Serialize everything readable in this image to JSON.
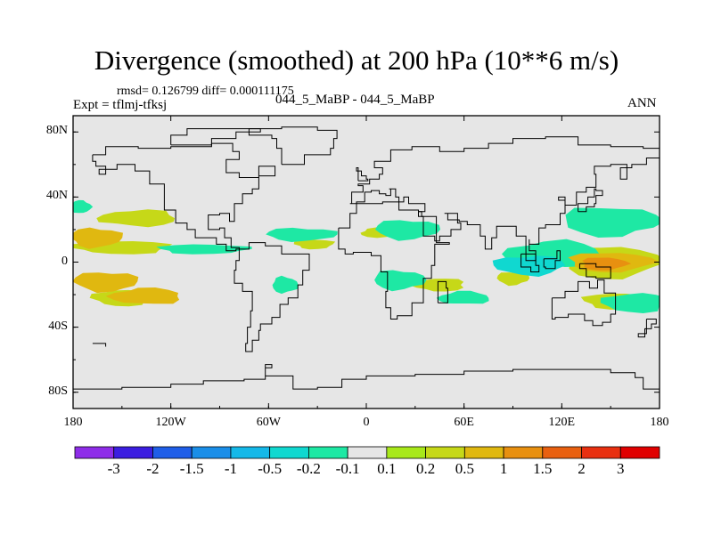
{
  "title": "Divergence (smoothed) at 200 hPa (10**6 m/s)",
  "stats": "rmsd= 0.126799 diff= 0.000111175",
  "experiment": "Expt = tflmj-tfksj",
  "cases": "044_5_MaBP - 044_5_MaBP",
  "season": "ANN",
  "chart_data": {
    "type": "heatmap",
    "projection": "cylindrical-equidistant",
    "lon_range": [
      -180,
      180
    ],
    "lat_range": [
      -90,
      90
    ],
    "x_ticks": [
      {
        "value": -180,
        "label": "180"
      },
      {
        "value": -120,
        "label": "120W"
      },
      {
        "value": -60,
        "label": "60W"
      },
      {
        "value": 0,
        "label": "0"
      },
      {
        "value": 60,
        "label": "60E"
      },
      {
        "value": 120,
        "label": "120E"
      },
      {
        "value": 180,
        "label": "180"
      }
    ],
    "y_ticks": [
      {
        "value": 80,
        "label": "80N"
      },
      {
        "value": 40,
        "label": "40N"
      },
      {
        "value": 0,
        "label": "0"
      },
      {
        "value": -40,
        "label": "40S"
      },
      {
        "value": -80,
        "label": "80S"
      }
    ],
    "levels": [
      "-3",
      "-2",
      "-1.5",
      "-1",
      "-0.5",
      "-0.2",
      "-0.1",
      "0.1",
      "0.2",
      "0.5",
      "1",
      "1.5",
      "2",
      "3"
    ],
    "colors": [
      "#8e2de8",
      "#3b1ee0",
      "#1f5ee8",
      "#1a8ee8",
      "#14b8e8",
      "#10d8d0",
      "#1ee8a4",
      "#e6e6e6",
      "#a8e81a",
      "#c6d818",
      "#e0b810",
      "#e89010",
      "#e86010",
      "#e83010",
      "#e00000"
    ],
    "features": [
      {
        "name": "positive",
        "lon": -166,
        "lat": 15,
        "rx": 16,
        "ry": 6,
        "value": 0.5
      },
      {
        "name": "positive",
        "lon": -150,
        "lat": 9,
        "rx": 30,
        "ry": 4,
        "value": 0.2
      },
      {
        "name": "positive",
        "lon": -160,
        "lat": -12,
        "rx": 20,
        "ry": 6,
        "value": 0.5
      },
      {
        "name": "positive",
        "lon": -135,
        "lat": -21,
        "rx": 22,
        "ry": 5,
        "value": 0.5
      },
      {
        "name": "positive",
        "lon": -150,
        "lat": -22,
        "rx": 18,
        "ry": 5,
        "value": 0.2
      },
      {
        "name": "positive",
        "lon": -140,
        "lat": 27,
        "rx": 24,
        "ry": 5,
        "value": 0.2
      },
      {
        "name": "positive",
        "lon": 146,
        "lat": -1,
        "rx": 14,
        "ry": 4,
        "value": 1.0
      },
      {
        "name": "positive",
        "lon": 150,
        "lat": 0,
        "rx": 26,
        "ry": 6,
        "value": 0.5
      },
      {
        "name": "positive",
        "lon": 150,
        "lat": 0,
        "rx": 30,
        "ry": 10,
        "value": 0.2
      },
      {
        "name": "positive",
        "lon": 155,
        "lat": -24,
        "rx": 22,
        "ry": 5,
        "value": 0.2
      },
      {
        "name": "positive",
        "lon": 10,
        "lat": 18,
        "rx": 14,
        "ry": 3,
        "value": 0.2
      },
      {
        "name": "positive",
        "lon": -32,
        "lat": 11,
        "rx": 12,
        "ry": 3,
        "value": 0.2
      },
      {
        "name": "positive",
        "lon": 45,
        "lat": -14,
        "rx": 16,
        "ry": 4,
        "value": 0.2
      },
      {
        "name": "positive",
        "lon": 90,
        "lat": -10,
        "rx": 10,
        "ry": 4,
        "value": 0.2
      },
      {
        "name": "negative",
        "lon": -100,
        "lat": 8,
        "rx": 28,
        "ry": 3,
        "value": -0.2
      },
      {
        "name": "negative",
        "lon": -40,
        "lat": 17,
        "rx": 22,
        "ry": 4,
        "value": -0.2
      },
      {
        "name": "negative",
        "lon": 25,
        "lat": 20,
        "rx": 20,
        "ry": 6,
        "value": -0.2
      },
      {
        "name": "negative",
        "lon": 20,
        "lat": -11,
        "rx": 16,
        "ry": 6,
        "value": -0.2
      },
      {
        "name": "negative",
        "lon": 115,
        "lat": 5,
        "rx": 30,
        "ry": 8,
        "value": -0.2
      },
      {
        "name": "negative",
        "lon": 100,
        "lat": -2,
        "rx": 22,
        "ry": 6,
        "value": -0.5
      },
      {
        "name": "negative",
        "lon": 150,
        "lat": 25,
        "rx": 30,
        "ry": 9,
        "value": -0.2
      },
      {
        "name": "negative",
        "lon": 165,
        "lat": -25,
        "rx": 20,
        "ry": 6,
        "value": -0.2
      },
      {
        "name": "negative",
        "lon": 60,
        "lat": -22,
        "rx": 16,
        "ry": 4,
        "value": -0.2
      },
      {
        "name": "negative",
        "lon": -175,
        "lat": 34,
        "rx": 6,
        "ry": 4,
        "value": -0.2
      },
      {
        "name": "negative",
        "lon": -50,
        "lat": -14,
        "rx": 8,
        "ry": 5,
        "value": -0.2
      }
    ]
  }
}
